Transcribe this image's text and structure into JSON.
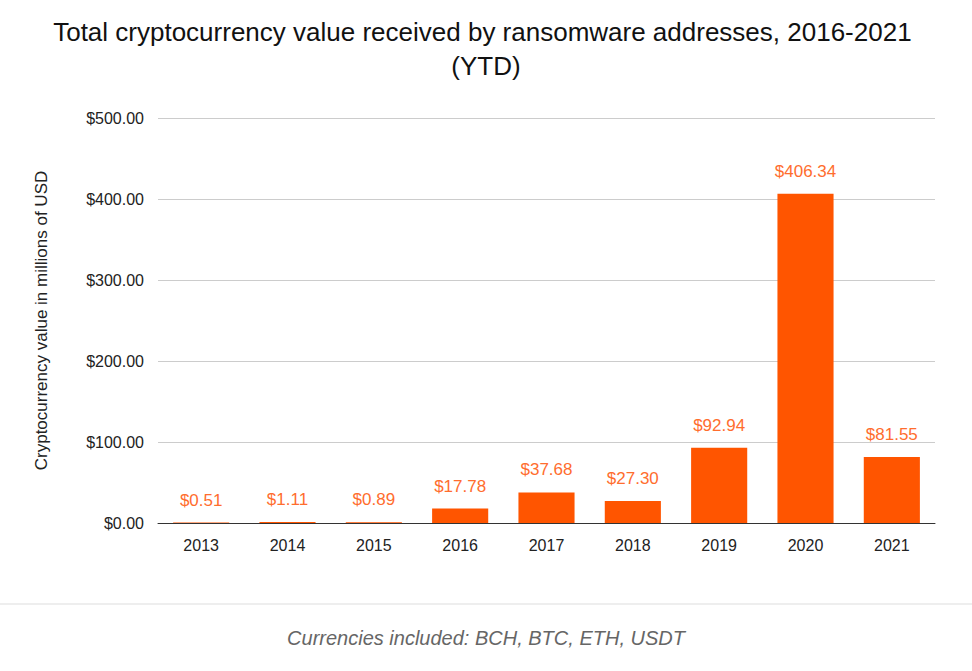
{
  "chart_data": {
    "type": "bar",
    "title": "Total cryptocurrency value received by ransomware addresses, 2016-2021 (YTD)",
    "y_label": "Cryptocurrency value in millions of USD",
    "caption": "Currencies included: BCH, BTC, ETH, USDT",
    "categories": [
      "2013",
      "2014",
      "2015",
      "2016",
      "2017",
      "2018",
      "2019",
      "2020",
      "2021"
    ],
    "values": [
      0.51,
      1.11,
      0.89,
      17.78,
      37.68,
      27.3,
      92.94,
      406.34,
      81.55
    ],
    "value_labels": [
      "$0.51",
      "$1.11",
      "$0.89",
      "$17.78",
      "$37.68",
      "$27.30",
      "$92.94",
      "$406.34",
      "$81.55"
    ],
    "color": "#ff5500",
    "ylim": [
      0,
      500
    ],
    "yticks": [
      {
        "value": 0,
        "label": "$0.00"
      },
      {
        "value": 100,
        "label": "$100.00"
      },
      {
        "value": 200,
        "label": "$200.00"
      },
      {
        "value": 300,
        "label": "$300.00"
      },
      {
        "value": 400,
        "label": "$400.00"
      },
      {
        "value": 500,
        "label": "$500.00"
      }
    ],
    "grid": true,
    "data_labels": true
  }
}
